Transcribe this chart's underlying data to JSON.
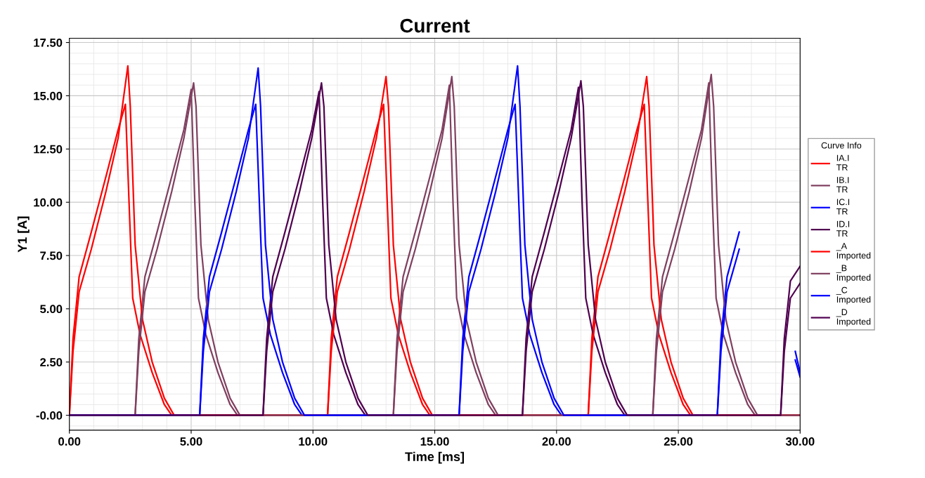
{
  "chart_data": {
    "type": "line",
    "title": "Current",
    "xlabel": "Time [ms]",
    "ylabel": "Y1 [A]",
    "legend_title": "Curve Info",
    "legend": "right",
    "grid": true,
    "line_style": "solid",
    "marker": "none",
    "xlim": [
      0,
      30
    ],
    "ylim": [
      -0.7,
      17.7
    ],
    "xticks": [
      {
        "value": 0,
        "label": "0.00"
      },
      {
        "value": 5,
        "label": "5.00"
      },
      {
        "value": 10,
        "label": "10.00"
      },
      {
        "value": 15,
        "label": "15.00"
      },
      {
        "value": 20,
        "label": "20.00"
      },
      {
        "value": 25,
        "label": "25.00"
      },
      {
        "value": 30,
        "label": "30.00"
      }
    ],
    "yticks": [
      {
        "value": 0,
        "label": "-0.00"
      },
      {
        "value": 2.5,
        "label": "2.50"
      },
      {
        "value": 5,
        "label": "5.00"
      },
      {
        "value": 7.5,
        "label": "7.50"
      },
      {
        "value": 10,
        "label": "10.00"
      },
      {
        "value": 12.5,
        "label": "12.50"
      },
      {
        "value": 15,
        "label": "15.00"
      },
      {
        "value": 17.5,
        "label": "17.50"
      }
    ],
    "series": [
      {
        "name": "IA.I\nTR",
        "color": "#ff0000",
        "x": [
          0,
          0.15,
          0.4,
          0.9,
          1.5,
          2.0,
          2.3,
          2.45,
          2.6,
          2.9,
          3.4,
          3.9,
          4.2,
          10.6,
          10.75,
          11.0,
          11.5,
          12.1,
          12.6,
          12.9,
          13.05,
          13.2,
          13.5,
          14.0,
          14.5,
          14.8,
          21.3,
          21.45,
          21.7,
          22.2,
          22.8,
          23.3,
          23.6,
          23.75,
          23.9,
          24.2,
          24.7,
          25.2,
          25.5,
          30
        ],
        "values": [
          0,
          3.6,
          6.5,
          8.6,
          11.2,
          13.4,
          14.6,
          10,
          5.5,
          3.8,
          2,
          0.5,
          0,
          0,
          3.6,
          6.5,
          8.6,
          11.2,
          13.4,
          14.6,
          10,
          5.5,
          3.8,
          2,
          0.5,
          0,
          0,
          3.6,
          6.5,
          8.6,
          11.2,
          13.4,
          14.6,
          10,
          5.5,
          3.8,
          2,
          0.5,
          0,
          0
        ]
      },
      {
        "name": "IB.I\nTR",
        "color": "#804060",
        "x": [
          0,
          2.7,
          2.85,
          3.1,
          3.6,
          4.2,
          4.7,
          5.0,
          5.15,
          5.3,
          5.6,
          6.1,
          6.6,
          6.9,
          13.3,
          13.45,
          13.7,
          14.2,
          14.8,
          15.3,
          15.6,
          15.75,
          15.9,
          16.2,
          16.7,
          17.2,
          17.5,
          23.95,
          24.1,
          24.35,
          24.85,
          25.45,
          25.95,
          26.25,
          26.4,
          26.55,
          26.85,
          27.35,
          27.85,
          28.15,
          30
        ],
        "values": [
          0,
          0,
          3.6,
          6.5,
          8.6,
          11.2,
          13.4,
          15.3,
          10,
          5.5,
          3.8,
          2,
          0.5,
          0,
          0,
          3.6,
          6.5,
          8.6,
          11.2,
          13.4,
          15.5,
          10,
          5.5,
          3.8,
          2,
          0.5,
          0,
          0,
          3.6,
          6.5,
          8.6,
          11.2,
          13.4,
          15.6,
          10,
          5.5,
          3.8,
          2,
          0.5,
          0,
          0
        ]
      },
      {
        "name": "IC.I\nTR",
        "color": "#0000ff",
        "x": [
          0,
          5.35,
          5.5,
          5.75,
          6.25,
          6.85,
          7.35,
          7.65,
          7.8,
          7.95,
          8.25,
          8.75,
          9.25,
          9.55,
          16.0,
          16.15,
          16.4,
          16.9,
          17.5,
          18.0,
          18.3,
          18.45,
          18.6,
          18.9,
          19.4,
          19.9,
          20.2,
          26.6,
          26.75,
          27.0,
          27.5,
          28.5,
          29.8,
          30
        ],
        "values": [
          0,
          0,
          3.6,
          6.5,
          8.6,
          11.2,
          13.4,
          14.6,
          10,
          5.5,
          3.8,
          2,
          0.5,
          0,
          0,
          3.6,
          6.5,
          8.6,
          11.2,
          13.4,
          14.6,
          10,
          5.5,
          3.8,
          2,
          0.5,
          0,
          0,
          3.6,
          6.5,
          8.6,
          null,
          2.6,
          1.8
        ]
      },
      {
        "name": "ID.I\nTR",
        "color": "#500050",
        "x": [
          0,
          7.95,
          8.1,
          8.35,
          8.85,
          9.45,
          9.95,
          10.25,
          10.4,
          10.55,
          10.85,
          11.35,
          11.85,
          12.15,
          18.6,
          18.75,
          19.0,
          19.5,
          20.1,
          20.6,
          20.9,
          21.05,
          21.2,
          21.5,
          22.0,
          22.5,
          22.8,
          29.2,
          29.35,
          29.6,
          30
        ],
        "values": [
          0,
          0,
          3.6,
          6.5,
          8.6,
          11.2,
          13.4,
          15.2,
          10,
          5.5,
          3.8,
          2,
          0.5,
          0,
          0,
          3.6,
          6.5,
          8.6,
          11.2,
          13.4,
          15.4,
          10,
          5.5,
          3.8,
          2,
          0.5,
          0,
          0,
          3.6,
          6.3,
          7.0
        ]
      },
      {
        "name": "_A\nImported",
        "color": "#ff0000",
        "x": [
          0,
          0.15,
          0.4,
          0.9,
          1.5,
          2.0,
          2.4,
          2.5,
          2.7,
          3.0,
          3.4,
          3.9,
          4.3,
          10.6,
          10.75,
          11.0,
          11.5,
          12.1,
          12.6,
          13.0,
          13.1,
          13.3,
          13.6,
          14.0,
          14.5,
          14.9,
          21.3,
          21.45,
          21.7,
          22.2,
          22.8,
          23.3,
          23.7,
          23.8,
          24.0,
          24.3,
          24.7,
          25.2,
          25.6,
          30
        ],
        "values": [
          0,
          3,
          5.8,
          7.8,
          10.5,
          13,
          16.4,
          14.5,
          8,
          4.5,
          2.5,
          0.8,
          0,
          0,
          3,
          5.8,
          7.8,
          10.5,
          13,
          15.9,
          14.5,
          8,
          4.5,
          2.5,
          0.8,
          0,
          0,
          3,
          5.8,
          7.8,
          10.5,
          13,
          15.9,
          14.5,
          8,
          4.5,
          2.5,
          0.8,
          0,
          0
        ]
      },
      {
        "name": "_B\nImported",
        "color": "#804060",
        "x": [
          0,
          2.7,
          2.85,
          3.1,
          3.6,
          4.2,
          4.7,
          5.1,
          5.2,
          5.4,
          5.7,
          6.1,
          6.6,
          7.0,
          13.3,
          13.45,
          13.7,
          14.2,
          14.8,
          15.3,
          15.7,
          15.8,
          16.0,
          16.3,
          16.7,
          17.2,
          17.6,
          23.95,
          24.1,
          24.35,
          24.85,
          25.45,
          25.95,
          26.35,
          26.45,
          26.65,
          26.95,
          27.35,
          27.85,
          28.25,
          30
        ],
        "values": [
          0,
          0,
          3,
          5.8,
          7.8,
          10.5,
          13,
          15.6,
          14.5,
          8,
          4.5,
          2.5,
          0.8,
          0,
          0,
          3,
          5.8,
          7.8,
          10.5,
          13,
          15.9,
          14.5,
          8,
          4.5,
          2.5,
          0.8,
          0,
          0,
          3,
          5.8,
          7.8,
          10.5,
          13,
          16.0,
          14.5,
          8,
          4.5,
          2.5,
          0.8,
          0,
          0
        ]
      },
      {
        "name": "_C\nImported",
        "color": "#0000ff",
        "x": [
          0,
          5.35,
          5.5,
          5.75,
          6.25,
          6.85,
          7.35,
          7.75,
          7.85,
          8.05,
          8.35,
          8.75,
          9.25,
          9.65,
          16.0,
          16.15,
          16.4,
          16.9,
          17.5,
          18.0,
          18.4,
          18.5,
          18.7,
          19.0,
          19.4,
          19.9,
          20.3,
          26.6,
          26.75,
          27.0,
          27.5,
          28.5,
          29.8,
          30
        ],
        "values": [
          0,
          0,
          3,
          5.8,
          7.8,
          10.5,
          13,
          16.3,
          14.5,
          8,
          4.5,
          2.5,
          0.8,
          0,
          0,
          3,
          5.8,
          7.8,
          10.5,
          13,
          16.4,
          14.5,
          8,
          4.5,
          2.5,
          0.8,
          0,
          0,
          3,
          5.8,
          7.8,
          null,
          3,
          2
        ]
      },
      {
        "name": "_D\nImported",
        "color": "#500050",
        "x": [
          0,
          7.95,
          8.1,
          8.35,
          8.85,
          9.45,
          9.95,
          10.35,
          10.45,
          10.65,
          10.95,
          11.35,
          11.85,
          12.25,
          18.6,
          18.75,
          19.0,
          19.5,
          20.1,
          20.6,
          21.0,
          21.1,
          21.3,
          21.6,
          22.0,
          22.5,
          22.9,
          29.2,
          29.35,
          29.6,
          30
        ],
        "values": [
          0,
          0,
          3,
          5.8,
          7.8,
          10.5,
          13,
          15.6,
          14.5,
          8,
          4.5,
          2.5,
          0.8,
          0,
          0,
          3,
          5.8,
          7.8,
          10.5,
          13,
          15.7,
          14.5,
          8,
          4.5,
          2.5,
          0.8,
          0,
          0,
          3,
          5.5,
          6.2
        ]
      }
    ]
  }
}
